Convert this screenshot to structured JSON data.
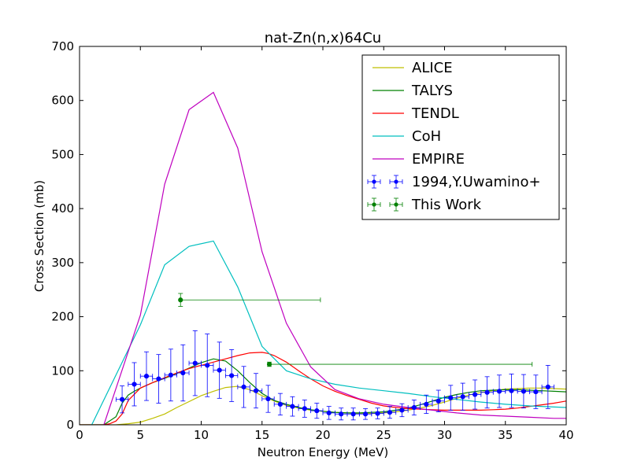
{
  "chart_data": {
    "type": "line",
    "title": "nat-Zn(n,x)64Cu",
    "xlabel": "Neutron Energy (MeV)",
    "ylabel": "Cross Section (mb)",
    "xlim": [
      0,
      40
    ],
    "ylim": [
      0,
      700
    ],
    "xticks": [
      0,
      5,
      10,
      15,
      20,
      25,
      30,
      35,
      40
    ],
    "yticks": [
      0,
      100,
      200,
      300,
      400,
      500,
      600,
      700
    ],
    "grid": false,
    "legend_position": "top-right",
    "series": [
      {
        "name": "ALICE",
        "color": "#bfbf00",
        "style": "line",
        "x": [
          0,
          2,
          3,
          4,
          5,
          6,
          7,
          8,
          9,
          10,
          11,
          12,
          12.9,
          14,
          15,
          16,
          17,
          18,
          19,
          20,
          21,
          22,
          23,
          24,
          25,
          26,
          27,
          28,
          29,
          30,
          31,
          32,
          33,
          34,
          35,
          36,
          37,
          38,
          39,
          40
        ],
        "y": [
          0,
          0,
          0,
          2,
          5,
          12,
          20,
          32,
          43,
          54,
          62,
          69,
          71,
          65,
          54,
          44,
          36,
          31,
          27,
          25,
          23,
          22,
          21,
          21,
          22,
          24,
          27,
          31,
          36,
          42,
          49,
          55,
          60,
          63,
          66,
          67,
          68,
          68,
          67,
          66
        ]
      },
      {
        "name": "TALYS",
        "color": "#008000",
        "style": "line",
        "x": [
          0,
          2,
          3,
          3.5,
          4,
          4.5,
          5,
          6,
          7,
          8,
          9,
          10,
          11,
          12,
          13,
          14,
          15,
          16,
          17,
          18,
          19,
          20,
          21,
          22,
          23,
          24,
          25,
          26,
          27,
          28,
          29,
          30,
          31,
          32,
          33,
          34,
          35,
          36,
          37,
          38,
          39,
          40
        ],
        "y": [
          0,
          0,
          15,
          40,
          55,
          62,
          68,
          78,
          86,
          95,
          105,
          115,
          122,
          118,
          100,
          78,
          58,
          45,
          38,
          32,
          28,
          25,
          23,
          22,
          22,
          23,
          24,
          27,
          31,
          37,
          44,
          51,
          56,
          60,
          63,
          64,
          65,
          65,
          64,
          63,
          62,
          61
        ]
      },
      {
        "name": "TENDL",
        "color": "#ff0000",
        "style": "line",
        "x": [
          0,
          2,
          2.5,
          3,
          3.5,
          4,
          5,
          6,
          7,
          8,
          9,
          10,
          11,
          12,
          13,
          14,
          15,
          15.5,
          16,
          17,
          18,
          19,
          20,
          21,
          22,
          23,
          24,
          25,
          26,
          27,
          28,
          29,
          30,
          31,
          32,
          33,
          34,
          35,
          36,
          37,
          38,
          39,
          40
        ],
        "y": [
          0,
          0,
          2,
          7,
          20,
          45,
          68,
          78,
          87,
          96,
          104,
          110,
          116,
          122,
          128,
          133,
          134,
          132,
          128,
          116,
          100,
          85,
          72,
          62,
          54,
          47,
          40,
          35,
          32,
          30,
          29,
          28,
          27,
          27,
          27,
          27,
          28,
          29,
          31,
          34,
          37,
          40,
          44
        ]
      },
      {
        "name": "CoH",
        "color": "#00bfbf",
        "style": "line",
        "x": [
          1,
          5,
          7,
          9,
          11,
          13,
          15,
          17,
          19,
          21,
          23,
          25,
          27,
          29,
          31,
          33,
          35,
          37,
          40
        ],
        "y": [
          0,
          185,
          296,
          330,
          340,
          255,
          145,
          100,
          85,
          75,
          68,
          63,
          58,
          52,
          47,
          42,
          38,
          35,
          32
        ]
      },
      {
        "name": "EMPIRE",
        "color": "#bf00bf",
        "style": "line",
        "x": [
          2,
          5,
          7,
          9,
          11,
          13,
          15,
          17,
          19,
          21,
          23,
          25,
          27,
          29,
          31,
          33,
          35,
          37,
          39,
          40
        ],
        "y": [
          0,
          203,
          445,
          583,
          615,
          512,
          320,
          188,
          107,
          65,
          48,
          38,
          32,
          27,
          22,
          18,
          16,
          14,
          12,
          12
        ]
      },
      {
        "name": "1994,Y.Uwamino+",
        "color": "#0000ff",
        "style": "errorbar",
        "x": [
          3.5,
          4.5,
          5.5,
          6.5,
          7.5,
          8.5,
          9.5,
          10.5,
          11.5,
          12.5,
          13.5,
          14.5,
          15.5,
          16.5,
          17.5,
          18.5,
          19.5,
          20.5,
          21.5,
          22.5,
          23.5,
          24.5,
          25.5,
          26.5,
          27.5,
          28.5,
          29.5,
          30.5,
          31.5,
          32.5,
          33.5,
          34.5,
          35.5,
          36.5,
          37.5,
          38.5
        ],
        "y": [
          47,
          75,
          90,
          85,
          92,
          96,
          114,
          110,
          101,
          91,
          70,
          63,
          48,
          38,
          34,
          30,
          26,
          22,
          20,
          20,
          20,
          21,
          23,
          27,
          32,
          38,
          44,
          50,
          52,
          56,
          60,
          62,
          63,
          62,
          61,
          70
        ],
        "yerr": [
          25,
          40,
          45,
          45,
          48,
          52,
          60,
          58,
          52,
          48,
          38,
          32,
          25,
          20,
          18,
          16,
          14,
          12,
          11,
          11,
          10,
          10,
          11,
          12,
          14,
          17,
          20,
          23,
          25,
          27,
          29,
          30,
          31,
          31,
          31,
          40
        ],
        "xerr": [
          0.5,
          0.5,
          0.5,
          0.5,
          0.5,
          0.5,
          0.5,
          0.5,
          0.5,
          0.5,
          0.5,
          0.5,
          0.5,
          0.5,
          0.5,
          0.5,
          0.5,
          0.5,
          0.5,
          0.5,
          0.5,
          0.5,
          0.5,
          0.5,
          0.5,
          0.5,
          0.5,
          0.5,
          0.5,
          0.5,
          0.5,
          0.5,
          0.5,
          0.5,
          0.5,
          0.5
        ]
      },
      {
        "name": "This Work",
        "color": "#008000",
        "style": "errorbar",
        "x": [
          8.3,
          15.6
        ],
        "y": [
          231,
          112
        ],
        "xlo": [
          8.3,
          15.6
        ],
        "xhi": [
          19.8,
          37.2
        ],
        "yerr": [
          12,
          4
        ]
      }
    ]
  }
}
